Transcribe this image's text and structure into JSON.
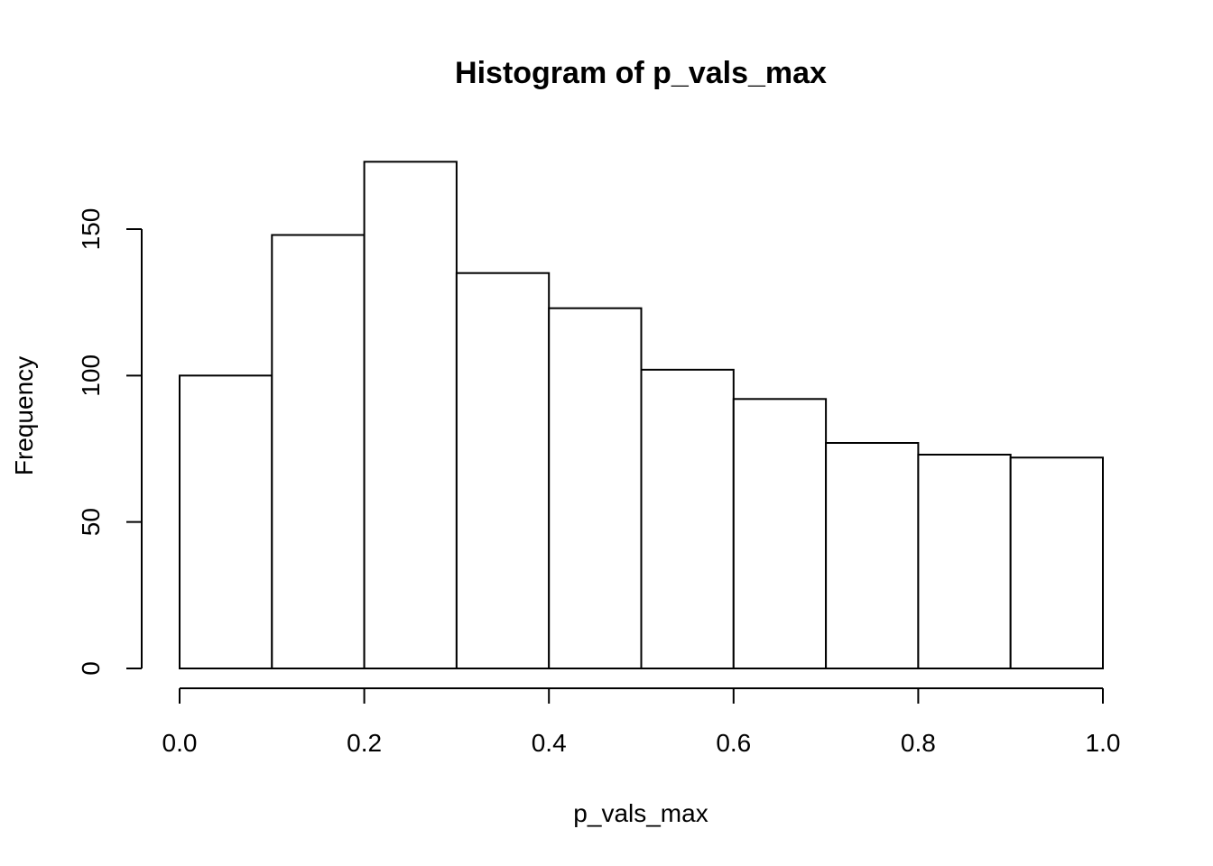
{
  "chart_data": {
    "type": "bar",
    "title": "Histogram of p_vals_max",
    "xlabel": "p_vals_max",
    "ylabel": "Frequency",
    "bins": [
      {
        "x0": 0.0,
        "x1": 0.1,
        "count": 100
      },
      {
        "x0": 0.1,
        "x1": 0.2,
        "count": 148
      },
      {
        "x0": 0.2,
        "x1": 0.3,
        "count": 173
      },
      {
        "x0": 0.3,
        "x1": 0.4,
        "count": 135
      },
      {
        "x0": 0.4,
        "x1": 0.5,
        "count": 123
      },
      {
        "x0": 0.5,
        "x1": 0.6,
        "count": 102
      },
      {
        "x0": 0.6,
        "x1": 0.7,
        "count": 92
      },
      {
        "x0": 0.7,
        "x1": 0.8,
        "count": 77
      },
      {
        "x0": 0.8,
        "x1": 0.9,
        "count": 73
      },
      {
        "x0": 0.9,
        "x1": 1.0,
        "count": 72
      }
    ],
    "xlim": [
      0.0,
      1.0
    ],
    "ylim": [
      0,
      150
    ],
    "x_ticks": [
      0.0,
      0.2,
      0.4,
      0.6,
      0.8,
      1.0
    ],
    "x_tick_labels": [
      "0.0",
      "0.2",
      "0.4",
      "0.6",
      "0.8",
      "1.0"
    ],
    "y_ticks": [
      0,
      50,
      100,
      150
    ],
    "y_tick_labels": [
      "0",
      "50",
      "100",
      "150"
    ],
    "grid": false,
    "legend": "none",
    "bar_fill": "#ffffff",
    "bar_stroke": "#000000"
  }
}
